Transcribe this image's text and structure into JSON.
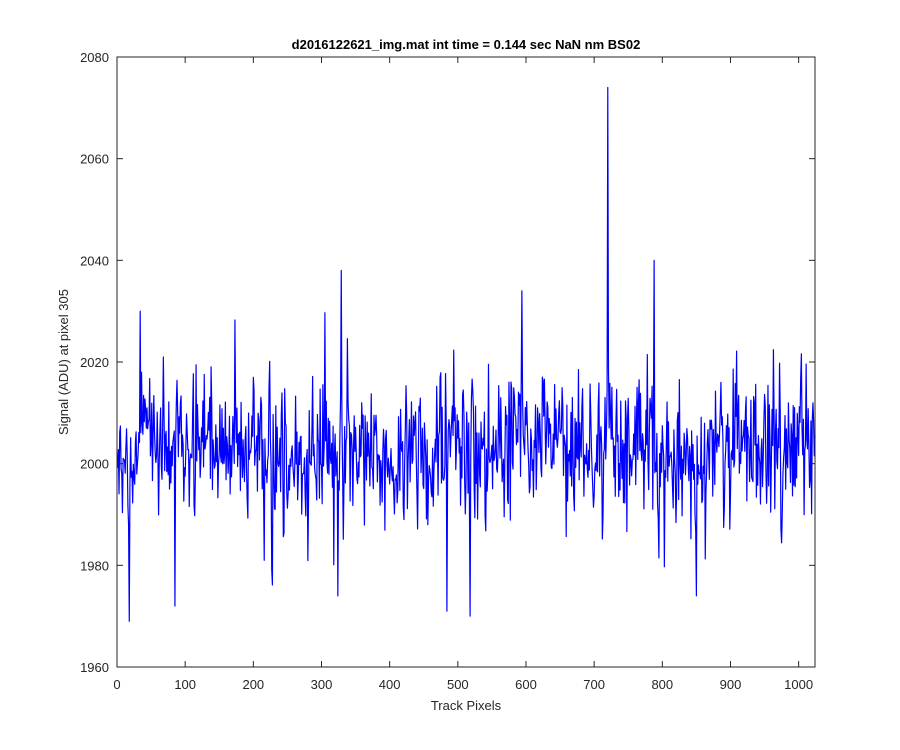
{
  "chart_data": {
    "type": "line",
    "title": "d2016122621_img.mat int time = 0.144 sec  NaN nm BS02",
    "xlabel": "Track Pixels",
    "ylabel": "Signal (ADU) at pixel 305",
    "xlim": [
      0,
      1024
    ],
    "ylim": [
      1960,
      2080
    ],
    "xticks": [
      0,
      100,
      200,
      300,
      400,
      500,
      600,
      700,
      800,
      900,
      1000
    ],
    "yticks": [
      1960,
      1980,
      2000,
      2020,
      2040,
      2060,
      2080
    ],
    "grid": false,
    "legend": "none",
    "series": [
      {
        "color": "#0000ff",
        "x_start": 1,
        "x_step": 1,
        "peaks": [
          {
            "x": 18,
            "y": 1969
          },
          {
            "x": 85,
            "y": 1972
          },
          {
            "x": 324,
            "y": 1974
          },
          {
            "x": 329,
            "y": 2038
          },
          {
            "x": 484,
            "y": 1971
          },
          {
            "x": 518,
            "y": 1970
          },
          {
            "x": 594,
            "y": 2034
          },
          {
            "x": 720,
            "y": 2074
          },
          {
            "x": 788,
            "y": 2040
          },
          {
            "x": 850,
            "y": 1974
          }
        ]
      }
    ]
  },
  "colors": {
    "line": "#0000ff",
    "axes": "#262626",
    "background": "#ffffff"
  }
}
